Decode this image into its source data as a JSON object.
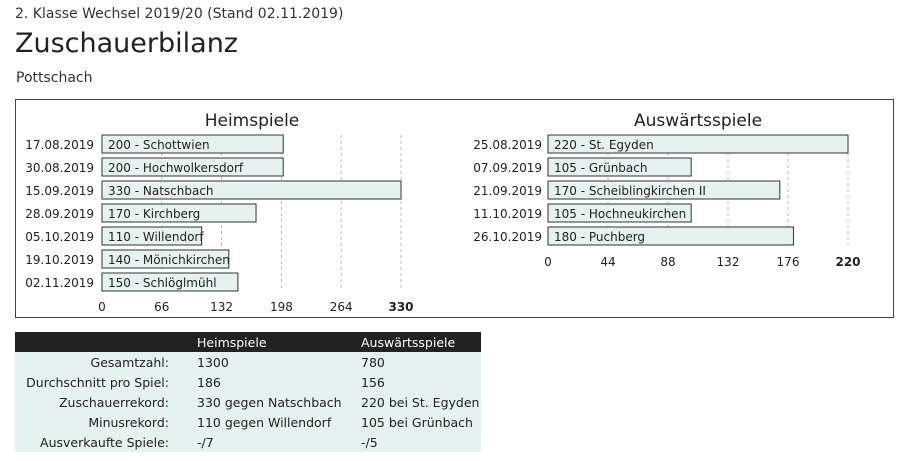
{
  "header": {
    "league": "2. Klasse Wechsel 2019/20 (Stand 02.11.2019)",
    "title": "Zuschauerbilanz",
    "team": "Pottschach"
  },
  "colors": {
    "bar_fill": "#e6f2ef",
    "bar_stroke": "#333333",
    "grid": "#bbbbbb",
    "table_header": "#222222"
  },
  "chart_data": [
    {
      "type": "bar",
      "orientation": "horizontal",
      "title": "Heimspiele",
      "categories": [
        "17.08.2019",
        "30.08.2019",
        "15.09.2019",
        "28.09.2019",
        "05.10.2019",
        "19.10.2019",
        "02.11.2019"
      ],
      "values": [
        200,
        200,
        330,
        170,
        110,
        140,
        150
      ],
      "bar_labels": [
        "200 - Schottwien",
        "200 - Hochwolkersdorf",
        "330 - Natschbach",
        "170 - Kirchberg",
        "110 - Willendorf",
        "140 - Mönichkirchen",
        "150 - Schlöglmühl"
      ],
      "xticks": [
        "0",
        "66",
        "132",
        "198",
        "264",
        "330"
      ],
      "xlim": [
        0,
        330
      ],
      "grid": true
    },
    {
      "type": "bar",
      "orientation": "horizontal",
      "title": "Auswärtsspiele",
      "categories": [
        "25.08.2019",
        "07.09.2019",
        "21.09.2019",
        "11.10.2019",
        "26.10.2019"
      ],
      "values": [
        220,
        105,
        170,
        105,
        180
      ],
      "bar_labels": [
        "220 - St. Egyden",
        "105 - Grünbach",
        "170 - Scheiblingkirchen II",
        "105 - Hochneukirchen",
        "180 - Puchberg"
      ],
      "xticks": [
        "0",
        "44",
        "88",
        "132",
        "176",
        "220"
      ],
      "xlim": [
        0,
        220
      ],
      "grid": true
    }
  ],
  "stats": {
    "headers": [
      "",
      "Heimspiele",
      "Auswärtsspiele"
    ],
    "rows": [
      {
        "label": "Gesamtzahl:",
        "home": "1300",
        "away": "780"
      },
      {
        "label": "Durchschnitt pro Spiel:",
        "home": "186",
        "away": "156"
      },
      {
        "label": "Zuschauerrekord:",
        "home": "330 gegen Natschbach",
        "away": "220 bei St. Egyden"
      },
      {
        "label": "Minusrekord:",
        "home": "110 gegen Willendorf",
        "away": "105 bei Grünbach"
      },
      {
        "label": "Ausverkaufte Spiele:",
        "home": "-/7",
        "away": "-/5"
      }
    ]
  }
}
